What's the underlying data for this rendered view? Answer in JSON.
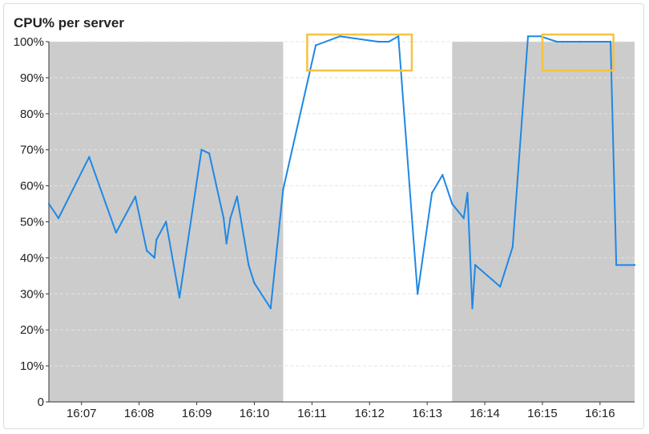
{
  "panel": {
    "title": "CPU% per server"
  },
  "colors": {
    "line": "#1e88e5",
    "shade": "#cccccc",
    "highlight": "#f5c342",
    "grid": "#e3e3e3",
    "axis": "#333333"
  },
  "chart_data": {
    "type": "line",
    "title": "CPU% per server",
    "xlabel": "",
    "ylabel": "",
    "ylim": [
      0,
      100
    ],
    "xlim": [
      "16:06:26",
      "16:16:36"
    ],
    "y_ticks": [
      0,
      10,
      20,
      30,
      40,
      50,
      60,
      70,
      80,
      90,
      100
    ],
    "y_tick_labels": [
      "0",
      "10%",
      "20%",
      "30%",
      "40%",
      "50%",
      "60%",
      "70%",
      "80%",
      "90%",
      "100%"
    ],
    "x_ticks": [
      "16:07",
      "16:08",
      "16:09",
      "16:10",
      "16:11",
      "16:12",
      "16:13",
      "16:14",
      "16:15",
      "16:16"
    ],
    "grid": "horizontal dashed",
    "shaded_ranges": [
      [
        "16:06:26",
        "16:10:30"
      ],
      [
        "16:13:26",
        "16:16:36"
      ]
    ],
    "highlight_ranges": [
      {
        "x": [
          "16:10:55",
          "16:12:44"
        ],
        "y": [
          92,
          102
        ]
      },
      {
        "x": [
          "16:15:00",
          "16:16:14"
        ],
        "y": [
          92,
          102
        ]
      }
    ],
    "series": [
      {
        "x": [
          "16:06:26",
          "16:06:36",
          "16:07:08",
          "16:07:36",
          "16:07:56",
          "16:08:08",
          "16:08:16",
          "16:08:18",
          "16:08:28",
          "16:08:42",
          "16:09:05",
          "16:09:13",
          "16:09:28",
          "16:09:31",
          "16:09:35",
          "16:09:42",
          "16:09:54",
          "16:10:00",
          "16:10:17",
          "16:10:30",
          "16:11:04",
          "16:11:29",
          "16:12:09",
          "16:12:20",
          "16:12:30",
          "16:12:50",
          "16:13:05",
          "16:13:16",
          "16:13:26",
          "16:13:38",
          "16:13:42",
          "16:13:47",
          "16:13:50",
          "16:14:16",
          "16:14:29",
          "16:14:45",
          "16:14:58",
          "16:15:15",
          "16:15:21",
          "16:15:39",
          "16:16:11",
          "16:16:17",
          "16:16:36"
        ],
        "values": [
          55,
          51,
          68,
          47,
          57,
          42,
          40,
          45,
          50,
          29,
          70,
          69,
          51,
          44,
          51,
          57,
          38,
          33,
          26,
          59,
          99,
          101.5,
          100,
          100,
          101.5,
          30,
          58,
          63,
          55,
          51,
          58,
          26,
          38,
          32,
          43,
          101.5,
          101.5,
          100,
          100,
          100,
          100,
          38,
          38
        ]
      }
    ]
  }
}
